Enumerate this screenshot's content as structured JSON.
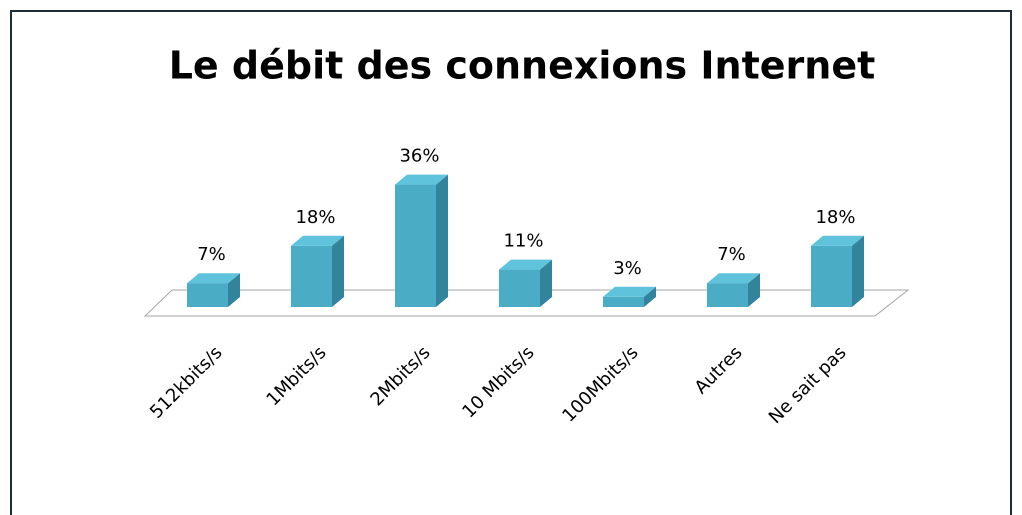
{
  "chart_data": {
    "type": "bar3d",
    "title": "Le débit des connexions Internet",
    "categories": [
      "512kbits/s",
      "1Mbits/s",
      "2Mbits/s",
      "10 Mbits/s",
      "100Mbits/s",
      "Autres",
      "Ne sait pas"
    ],
    "values": [
      7,
      18,
      36,
      11,
      3,
      7,
      18
    ],
    "value_labels": [
      "7%",
      "18%",
      "36%",
      "11%",
      "3%",
      "7%",
      "18%"
    ],
    "color": "#4bacc6"
  }
}
